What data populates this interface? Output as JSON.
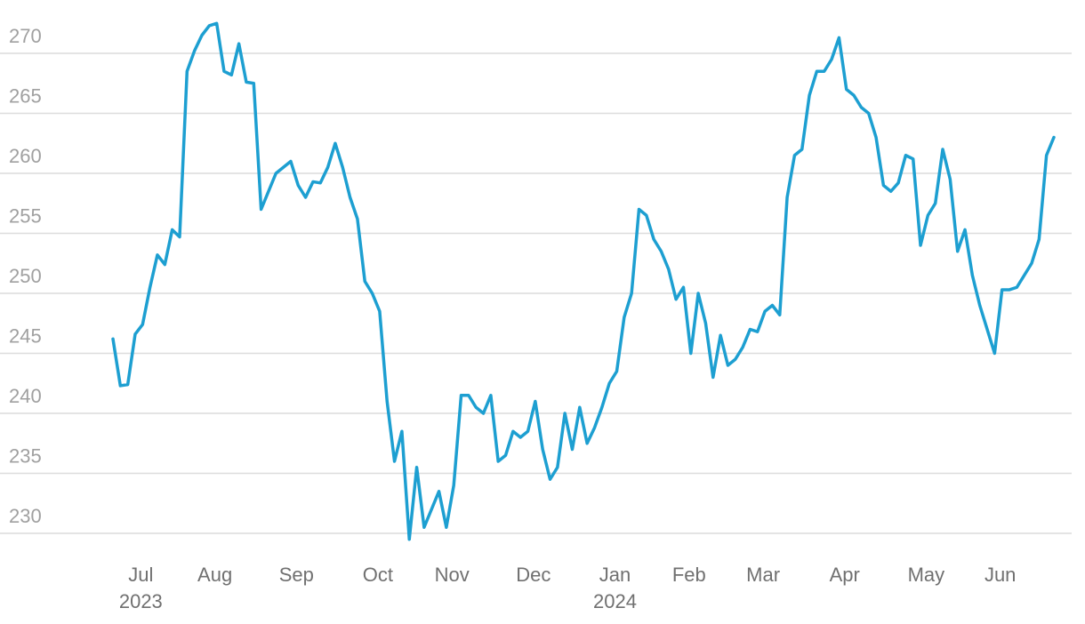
{
  "chart_data": {
    "type": "line",
    "categories": [
      null,
      null,
      null,
      null,
      "Jul",
      null,
      null,
      null,
      null,
      null,
      null,
      null,
      null,
      null,
      "Aug",
      null,
      null,
      null,
      null,
      null,
      null,
      null,
      null,
      null,
      null,
      "Sep",
      null,
      null,
      null,
      null,
      null,
      null,
      null,
      null,
      null,
      null,
      "Oct",
      null,
      null,
      null,
      null,
      null,
      null,
      null,
      null,
      null,
      "Nov",
      null,
      null,
      null,
      null,
      null,
      null,
      null,
      null,
      null,
      null,
      "Dec",
      null,
      null,
      null,
      null,
      null,
      null,
      null,
      null,
      null,
      null,
      "Jan",
      null,
      null,
      null,
      null,
      null,
      null,
      null,
      null,
      null,
      "Feb",
      null,
      null,
      null,
      null,
      null,
      null,
      null,
      null,
      null,
      "Mar",
      null,
      null,
      null,
      null,
      null,
      null,
      null,
      null,
      null,
      null,
      "Apr",
      null,
      null,
      null,
      null,
      null,
      null,
      null,
      null,
      null,
      null,
      "May",
      null,
      null,
      null,
      null,
      null,
      null,
      null,
      null,
      null,
      "Jun",
      null,
      null,
      null,
      null,
      null,
      null,
      null
    ],
    "category_years": [
      null,
      null,
      null,
      null,
      "2023",
      null,
      null,
      null,
      null,
      null,
      null,
      null,
      null,
      null,
      null,
      null,
      null,
      null,
      null,
      null,
      null,
      null,
      null,
      null,
      null,
      null,
      null,
      null,
      null,
      null,
      null,
      null,
      null,
      null,
      null,
      null,
      null,
      null,
      null,
      null,
      null,
      null,
      null,
      null,
      null,
      null,
      null,
      null,
      null,
      null,
      null,
      null,
      null,
      null,
      null,
      null,
      null,
      null,
      null,
      null,
      null,
      null,
      null,
      null,
      null,
      null,
      null,
      null,
      "2024",
      null,
      null,
      null,
      null,
      null,
      null,
      null,
      null,
      null,
      null,
      null,
      null,
      null,
      null,
      null,
      null,
      null,
      null,
      null,
      null,
      null,
      null,
      null,
      null,
      null,
      null,
      null,
      null,
      null,
      null,
      null,
      null,
      null,
      null,
      null,
      null,
      null,
      null,
      null,
      null,
      null,
      null,
      null,
      null,
      null,
      null,
      null,
      null,
      null,
      null,
      null,
      null,
      null,
      null,
      null,
      null,
      null,
      null,
      null
    ],
    "values": [
      246.2,
      242.3,
      242.4,
      246.6,
      247.4,
      250.5,
      253.2,
      252.4,
      255.3,
      254.7,
      268.5,
      270.2,
      271.5,
      272.3,
      272.5,
      268.5,
      268.2,
      270.8,
      267.6,
      267.5,
      257,
      258.5,
      260,
      260.5,
      261,
      259,
      258,
      259.3,
      259.2,
      260.5,
      262.5,
      260.5,
      258,
      256.2,
      251,
      250,
      248.5,
      241,
      236,
      238.5,
      229.5,
      235.5,
      230.5,
      232,
      233.5,
      230.5,
      234,
      241.5,
      241.5,
      240.5,
      240,
      241.5,
      236,
      236.5,
      238.5,
      238,
      238.5,
      241,
      237,
      234.5,
      235.5,
      240,
      237,
      240.5,
      237.5,
      238.8,
      240.5,
      242.5,
      243.5,
      248,
      250,
      257,
      256.5,
      254.5,
      253.5,
      252,
      249.5,
      250.5,
      245,
      250,
      247.5,
      243,
      246.5,
      244,
      244.5,
      245.5,
      247,
      246.8,
      248.5,
      249,
      248.2,
      258,
      261.5,
      262,
      266.5,
      268.5,
      268.5,
      269.5,
      271.3,
      267,
      266.5,
      265.5,
      265,
      263,
      259,
      258.5,
      259.2,
      261.5,
      261.2,
      254,
      256.5,
      257.5,
      262,
      259.5,
      253.5,
      255.3,
      251.5,
      249,
      247,
      245,
      250.3,
      250.3,
      250.5,
      251.5,
      252.5,
      254.5,
      261.5,
      263
    ],
    "color": "#1d9fd1",
    "ylim": [
      227.5,
      273
    ],
    "yticks": [
      230,
      235,
      240,
      245,
      250,
      255,
      260,
      265,
      270
    ],
    "grid": true
  }
}
